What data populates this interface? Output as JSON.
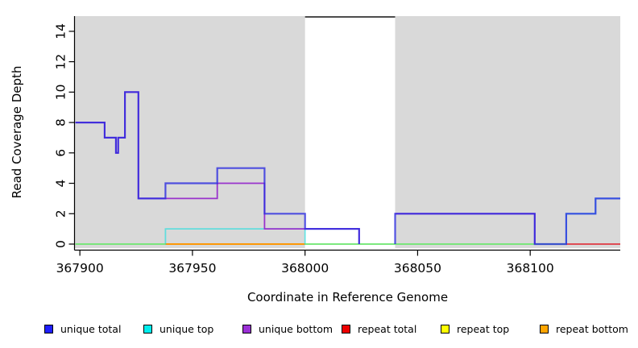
{
  "chart_data": {
    "type": "line",
    "subtype": "step-coverage",
    "title": "",
    "xlabel": "Coordinate in Reference Genome",
    "ylabel": "Read Coverage Depth",
    "x_ticks": [
      367900,
      367950,
      368000,
      368050,
      368100
    ],
    "y_ticks": [
      0,
      2,
      4,
      6,
      8,
      10,
      12,
      14
    ],
    "x_range": [
      367897.8,
      368140
    ],
    "y_range": [
      0,
      15
    ],
    "grid": false,
    "plot_bg": "#D9D9D9",
    "masked_region": {
      "x_start": 368000,
      "x_end": 368040,
      "fill": "#FFFFFF",
      "top_edge_color": "#4D4D4D"
    },
    "series": [
      {
        "name": "repeat top",
        "line_color": "#EDED00",
        "width": 1.8,
        "opacity": 1,
        "segments": [
          [
            [
              367898,
              0
            ],
            [
              368140,
              0
            ]
          ]
        ]
      },
      {
        "name": "repeat bottom",
        "line_color": "#FF8C00",
        "width": 1.8,
        "opacity": 1,
        "segments": [
          [
            [
              367938,
              0
            ],
            [
              368000,
              0
            ]
          ]
        ]
      },
      {
        "name": "unique top",
        "line_color": "#00E0E0",
        "width": 1.8,
        "opacity": 0.55,
        "segments": [
          [
            [
              367898,
              0
            ],
            [
              367938,
              0
            ],
            [
              367938,
              1
            ],
            [
              368000,
              1
            ],
            [
              368000,
              0
            ],
            [
              368116,
              0
            ],
            [
              368116,
              2
            ],
            [
              368129,
              2
            ],
            [
              368129,
              3
            ],
            [
              368140,
              3
            ]
          ]
        ]
      },
      {
        "name": "repeat total",
        "line_color": "#DC3558",
        "width": 1.8,
        "opacity": 1,
        "segments": [
          [
            [
              368116,
              0
            ],
            [
              368140,
              0
            ]
          ]
        ]
      },
      {
        "name": "unique bottom",
        "line_color": "#9933CC",
        "width": 1.8,
        "opacity": 1,
        "segments": [
          [
            [
              367898,
              8
            ],
            [
              367911,
              8
            ],
            [
              367911,
              7
            ],
            [
              367916,
              7
            ],
            [
              367916,
              6
            ],
            [
              367917,
              6
            ],
            [
              367917,
              7
            ],
            [
              367920,
              7
            ],
            [
              367920,
              10
            ],
            [
              367926,
              10
            ],
            [
              367926,
              3
            ],
            [
              367961,
              3
            ],
            [
              367961,
              4
            ],
            [
              367982,
              4
            ],
            [
              367982,
              1
            ],
            [
              368024,
              1
            ],
            [
              368024,
              0
            ]
          ],
          [
            [
              368040,
              2
            ],
            [
              368102,
              2
            ],
            [
              368102,
              0
            ]
          ]
        ]
      },
      {
        "name": "unique total",
        "line_color": "#2828E0",
        "width": 2.2,
        "opacity": 0.78,
        "segments": [
          [
            [
              367898,
              8
            ],
            [
              367911,
              8
            ],
            [
              367911,
              7
            ],
            [
              367916,
              7
            ],
            [
              367916,
              6
            ],
            [
              367917,
              6
            ],
            [
              367917,
              7
            ],
            [
              367920,
              7
            ],
            [
              367920,
              10
            ],
            [
              367926,
              10
            ],
            [
              367926,
              3
            ],
            [
              367938,
              3
            ],
            [
              367938,
              4
            ],
            [
              367961,
              4
            ],
            [
              367961,
              5
            ],
            [
              367982,
              5
            ],
            [
              367982,
              2
            ],
            [
              368000,
              2
            ],
            [
              368000,
              1
            ],
            [
              368024,
              1
            ],
            [
              368024,
              0
            ]
          ],
          [
            [
              368040,
              0
            ],
            [
              368040,
              2
            ],
            [
              368102,
              2
            ],
            [
              368102,
              0
            ],
            [
              368116,
              0
            ],
            [
              368116,
              2
            ],
            [
              368129,
              2
            ],
            [
              368129,
              3
            ],
            [
              368140,
              3
            ]
          ]
        ]
      }
    ],
    "legend_position": "bottom",
    "legend": [
      {
        "label": "unique total",
        "color": "#1F1FFF"
      },
      {
        "label": "unique top",
        "color": "#00EEEE"
      },
      {
        "label": "unique bottom",
        "color": "#9B30D6"
      },
      {
        "label": "repeat total",
        "color": "#EE0000"
      },
      {
        "label": "repeat top",
        "color": "#FFFF00"
      },
      {
        "label": "repeat bottom",
        "color": "#FFA500"
      }
    ]
  }
}
